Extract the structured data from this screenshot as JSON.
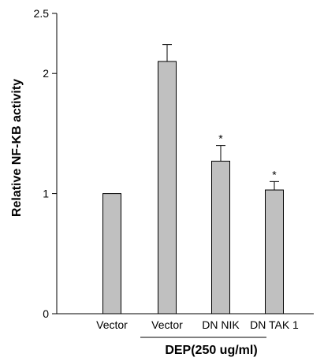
{
  "chart_data": {
    "type": "bar",
    "categories": [
      "Vector",
      "Vector",
      "DN NIK",
      "DN TAK 1"
    ],
    "values": [
      1.0,
      2.1,
      1.27,
      1.03
    ],
    "errors": [
      0,
      0.14,
      0.13,
      0.07
    ],
    "significance": [
      "",
      "",
      "*",
      "*"
    ],
    "ylabel": "Relative NF-KB activity",
    "xlabel": "",
    "ylim": [
      0,
      2.5
    ],
    "yticks": [
      {
        "value": 0,
        "label": "0"
      },
      {
        "value": 1,
        "label": "1"
      },
      {
        "value": 2,
        "label": "2"
      },
      {
        "value": 2.5,
        "label": "2.5"
      }
    ],
    "group_label": "DEP(250 ug/ml)",
    "group_span": [
      1,
      3
    ],
    "bar_color": "#c0c0c0",
    "bar_edge_color": "#000000",
    "grid": false,
    "legend": "none"
  }
}
